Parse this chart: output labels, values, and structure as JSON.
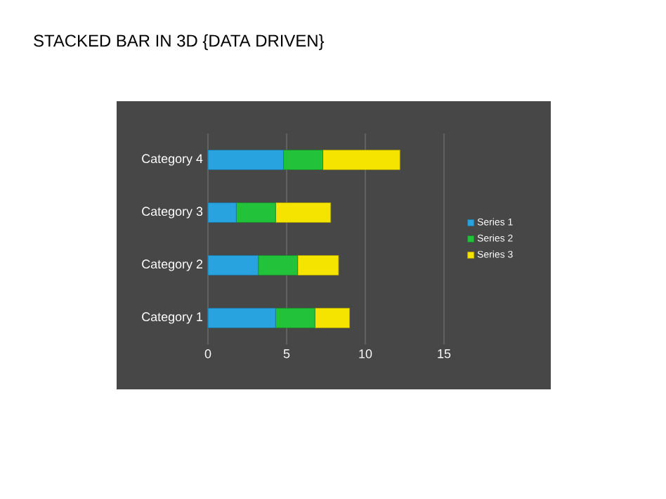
{
  "chart_data": {
    "type": "bar",
    "orientation": "horizontal",
    "stacked": true,
    "title": "STACKED BAR IN 3D {DATA DRIVEN}",
    "categories": [
      "Category 4",
      "Category 3",
      "Category 2",
      "Category 1"
    ],
    "series": [
      {
        "name": "Series 1",
        "color": "#29a3e0",
        "values": [
          4.8,
          1.8,
          3.2,
          4.3
        ]
      },
      {
        "name": "Series 2",
        "color": "#22c33a",
        "values": [
          2.5,
          2.5,
          2.5,
          2.5
        ]
      },
      {
        "name": "Series 3",
        "color": "#f5e400",
        "values": [
          4.9,
          3.5,
          2.6,
          2.2
        ]
      }
    ],
    "xlim": [
      0,
      15
    ],
    "xticks": [
      0,
      5,
      10,
      15
    ],
    "grid": "x",
    "legend": "right"
  }
}
